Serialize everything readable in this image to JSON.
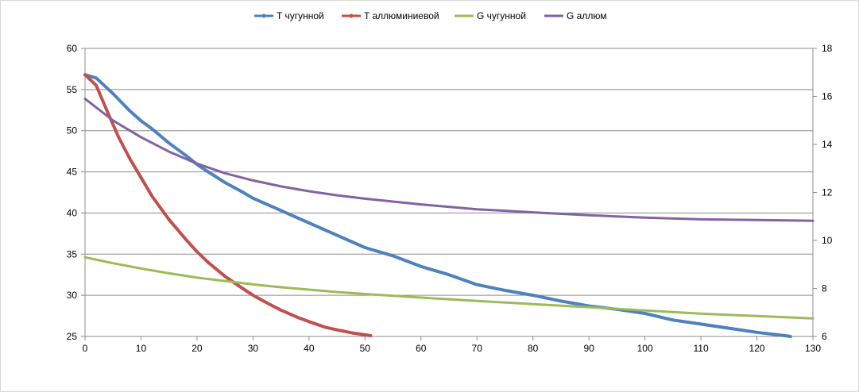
{
  "chart_data": {
    "type": "line",
    "title": "",
    "xlabel": "",
    "ylabel": "",
    "y2label": "",
    "xlim": [
      0,
      130
    ],
    "ylim": [
      25,
      60
    ],
    "y2lim": [
      6,
      18
    ],
    "x_ticks": [
      0,
      10,
      20,
      30,
      40,
      50,
      60,
      70,
      80,
      90,
      100,
      110,
      120,
      130
    ],
    "y_ticks": [
      25,
      30,
      35,
      40,
      45,
      50,
      55,
      60
    ],
    "y2_ticks": [
      6,
      8,
      10,
      12,
      14,
      16,
      18
    ],
    "grid": "horizontal",
    "legend_position": "top",
    "series": [
      {
        "name": "T чугунной",
        "axis": "left",
        "color": "#4f81bd",
        "x": [
          0,
          2,
          5,
          8,
          10,
          12,
          15,
          18,
          20,
          22,
          25,
          28,
          30,
          35,
          40,
          45,
          50,
          55,
          60,
          65,
          70,
          75,
          80,
          85,
          90,
          95,
          100,
          105,
          110,
          115,
          120,
          125,
          126
        ],
        "y": [
          56.8,
          56.4,
          54.5,
          52.4,
          51.2,
          50.2,
          48.5,
          47.0,
          45.9,
          45.0,
          43.7,
          42.6,
          41.8,
          40.3,
          38.8,
          37.3,
          35.8,
          34.8,
          33.5,
          32.5,
          31.3,
          30.6,
          30.0,
          29.3,
          28.7,
          28.3,
          27.8,
          27.0,
          26.5,
          26.0,
          25.5,
          25.1,
          25.0
        ]
      },
      {
        "name": "T аллюминиевой",
        "axis": "left",
        "color": "#c0504d",
        "x": [
          0,
          2,
          4,
          6,
          8,
          10,
          12,
          15,
          18,
          20,
          22,
          25,
          28,
          30,
          33,
          35,
          38,
          40,
          43,
          45,
          48,
          51
        ],
        "y": [
          56.8,
          55.5,
          52.3,
          49.2,
          46.6,
          44.3,
          42.0,
          39.2,
          36.8,
          35.3,
          34.0,
          32.3,
          30.9,
          30.0,
          28.9,
          28.2,
          27.3,
          26.8,
          26.1,
          25.8,
          25.4,
          25.1
        ]
      },
      {
        "name": "G чугунной",
        "axis": "right",
        "color": "#9bbb59",
        "x": [
          0,
          5,
          10,
          15,
          20,
          25,
          30,
          35,
          40,
          45,
          50,
          60,
          70,
          80,
          90,
          100,
          110,
          120,
          130
        ],
        "y": [
          9.3,
          9.05,
          8.83,
          8.63,
          8.45,
          8.31,
          8.17,
          8.05,
          7.95,
          7.85,
          7.77,
          7.62,
          7.48,
          7.35,
          7.22,
          7.08,
          6.95,
          6.85,
          6.75
        ]
      },
      {
        "name": "G аллюм",
        "axis": "right",
        "color": "#8064a2",
        "x": [
          0,
          5,
          10,
          15,
          20,
          25,
          30,
          35,
          40,
          45,
          50,
          55,
          60,
          70,
          80,
          90,
          100,
          110,
          120,
          130
        ],
        "y": [
          15.9,
          15.0,
          14.3,
          13.7,
          13.2,
          12.8,
          12.5,
          12.25,
          12.05,
          11.88,
          11.74,
          11.62,
          11.5,
          11.3,
          11.17,
          11.05,
          10.95,
          10.88,
          10.85,
          10.82
        ]
      }
    ]
  }
}
